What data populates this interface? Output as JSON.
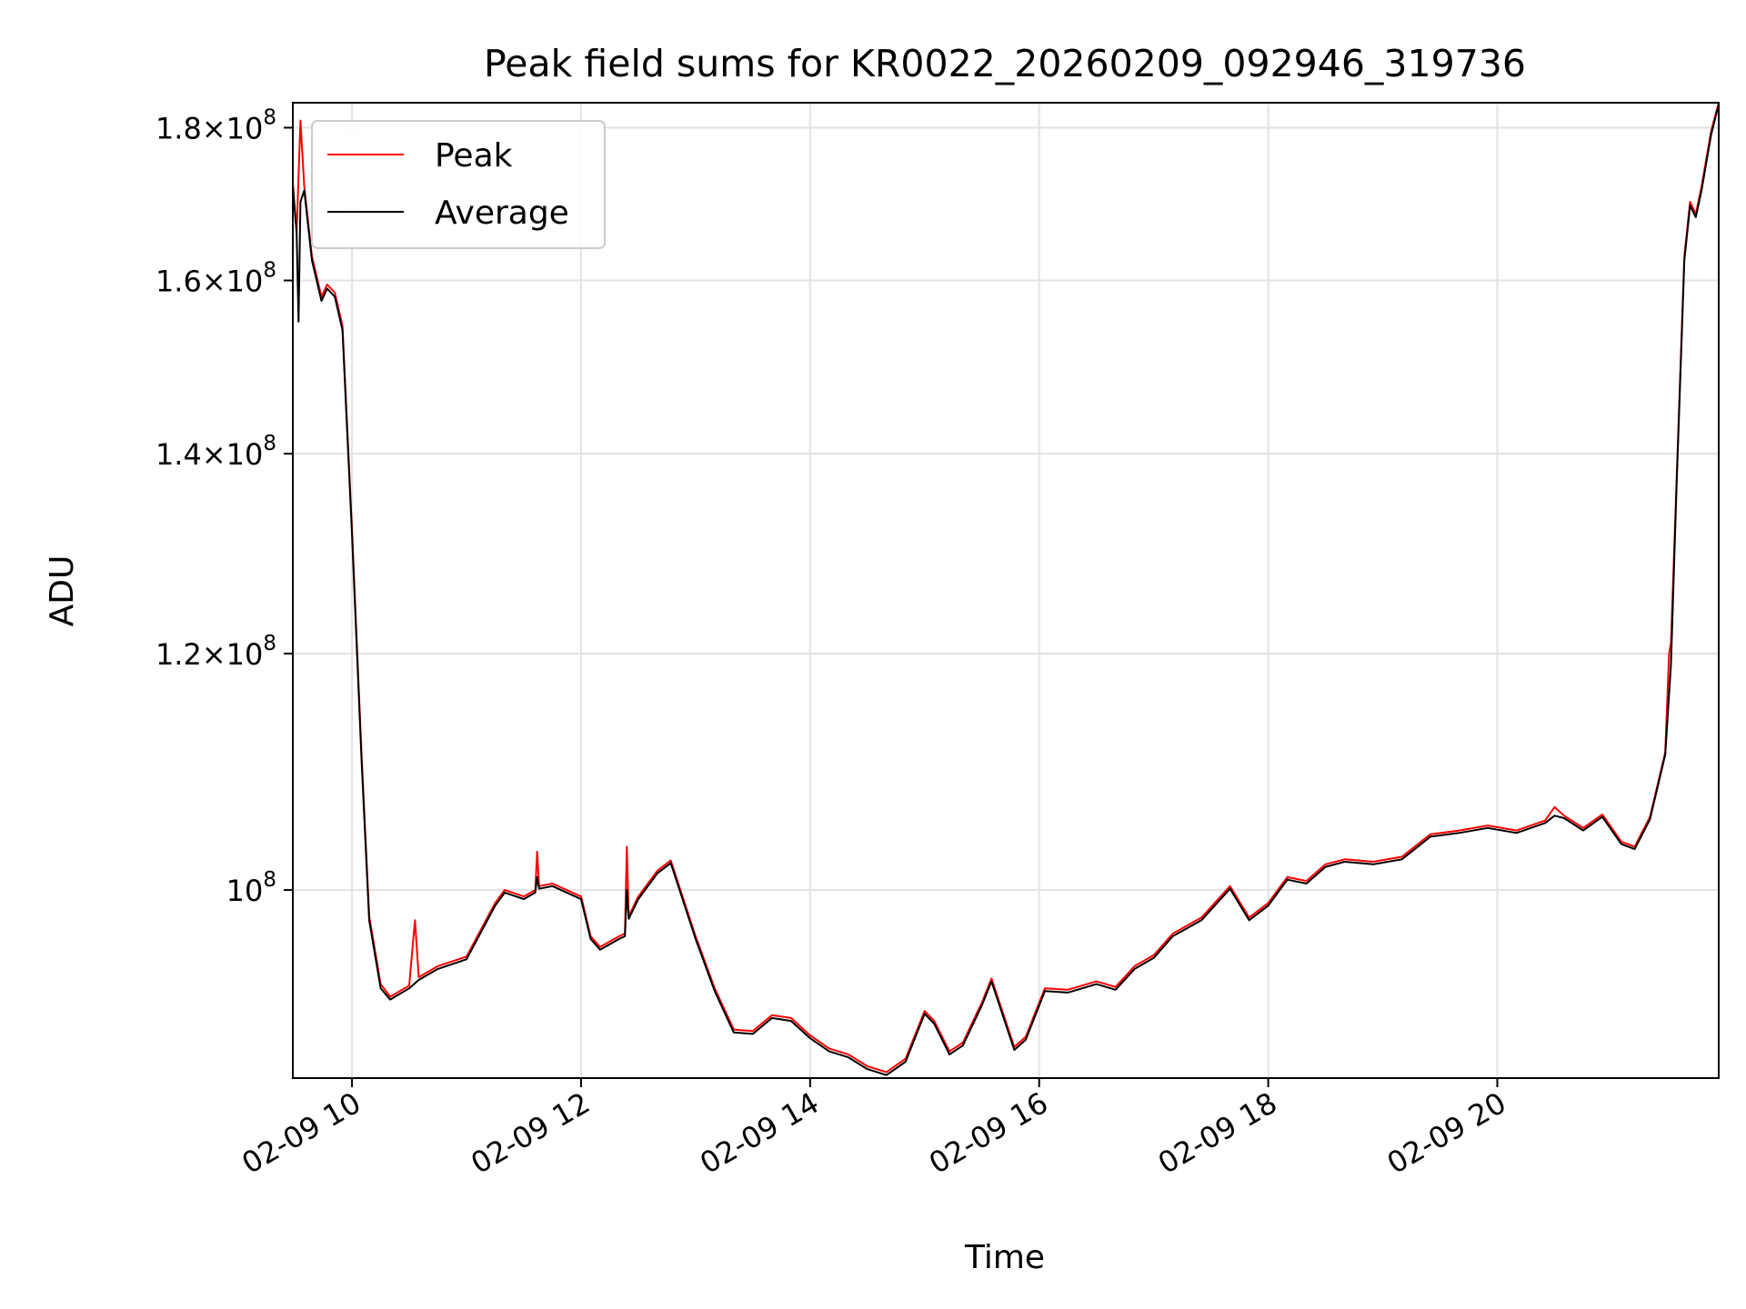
{
  "chart_data": {
    "type": "line",
    "title": "Peak field sums for KR0022_20260209_092946_319736",
    "xlabel": "Time",
    "ylabel": "ADU",
    "x_range": [
      "2026-02-09 09:29",
      "2026-02-09 21:56"
    ],
    "y_scale": "log",
    "y_range": [
      86500000,
      183500000
    ],
    "x_ticks": [
      "02-09 10",
      "02-09 12",
      "02-09 14",
      "02-09 16",
      "02-09 18",
      "02-09 20"
    ],
    "y_ticks": [
      {
        "value": 100000000,
        "mantissa": "",
        "exponent": "8"
      },
      {
        "value": 120000000,
        "mantissa": "1.2",
        "exponent": "8"
      },
      {
        "value": 140000000,
        "mantissa": "1.4",
        "exponent": "8"
      },
      {
        "value": 160000000,
        "mantissa": "1.6",
        "exponent": "8"
      },
      {
        "value": 180000000,
        "mantissa": "1.8",
        "exponent": "8"
      }
    ],
    "grid": true,
    "legend_position": "top-left",
    "series": [
      {
        "name": "Peak",
        "color": "#ff0000",
        "points": [
          [
            "2026-02-09 09:29",
            172500000
          ],
          [
            "2026-02-09 09:31",
            166000000
          ],
          [
            "2026-02-09 09:33",
            181000000
          ],
          [
            "2026-02-09 09:35",
            172000000
          ],
          [
            "2026-02-09 09:39",
            163000000
          ],
          [
            "2026-02-09 09:44",
            158000000
          ],
          [
            "2026-02-09 09:47",
            159500000
          ],
          [
            "2026-02-09 09:51",
            158500000
          ],
          [
            "2026-02-09 09:55",
            154500000
          ],
          [
            "2026-02-09 10:00",
            132000000
          ],
          [
            "2026-02-09 10:05",
            111000000
          ],
          [
            "2026-02-09 10:09",
            98000000
          ],
          [
            "2026-02-09 10:15",
            93000000
          ],
          [
            "2026-02-09 10:20",
            92100000
          ],
          [
            "2026-02-09 10:30",
            92900000
          ],
          [
            "2026-02-09 10:33",
            97700000
          ],
          [
            "2026-02-09 10:35",
            93500000
          ],
          [
            "2026-02-09 10:45",
            94300000
          ],
          [
            "2026-02-09 11:00",
            95000000
          ],
          [
            "2026-02-09 11:15",
            99000000
          ],
          [
            "2026-02-09 11:20",
            100000000
          ],
          [
            "2026-02-09 11:30",
            99500000
          ],
          [
            "2026-02-09 11:36",
            100000000
          ],
          [
            "2026-02-09 11:37",
            103000000
          ],
          [
            "2026-02-09 11:38",
            100300000
          ],
          [
            "2026-02-09 11:45",
            100500000
          ],
          [
            "2026-02-09 12:00",
            99500000
          ],
          [
            "2026-02-09 12:05",
            96500000
          ],
          [
            "2026-02-09 12:10",
            95700000
          ],
          [
            "2026-02-09 12:20",
            96500000
          ],
          [
            "2026-02-09 12:23",
            96700000
          ],
          [
            "2026-02-09 12:24",
            103400000
          ],
          [
            "2026-02-09 12:25",
            98000000
          ],
          [
            "2026-02-09 12:30",
            99500000
          ],
          [
            "2026-02-09 12:40",
            101500000
          ],
          [
            "2026-02-09 12:47",
            102300000
          ],
          [
            "2026-02-09 13:00",
            96500000
          ],
          [
            "2026-02-09 13:10",
            92700000
          ],
          [
            "2026-02-09 13:20",
            89800000
          ],
          [
            "2026-02-09 13:30",
            89700000
          ],
          [
            "2026-02-09 13:40",
            90800000
          ],
          [
            "2026-02-09 13:50",
            90600000
          ],
          [
            "2026-02-09 14:00",
            89400000
          ],
          [
            "2026-02-09 14:10",
            88500000
          ],
          [
            "2026-02-09 14:20",
            88100000
          ],
          [
            "2026-02-09 14:30",
            87300000
          ],
          [
            "2026-02-09 14:40",
            86900000
          ],
          [
            "2026-02-09 14:50",
            87800000
          ],
          [
            "2026-02-09 15:00",
            91100000
          ],
          [
            "2026-02-09 15:05",
            90400000
          ],
          [
            "2026-02-09 15:13",
            88300000
          ],
          [
            "2026-02-09 15:20",
            88900000
          ],
          [
            "2026-02-09 15:30",
            91700000
          ],
          [
            "2026-02-09 15:35",
            93400000
          ],
          [
            "2026-02-09 15:47",
            88600000
          ],
          [
            "2026-02-09 15:53",
            89300000
          ],
          [
            "2026-02-09 16:03",
            92700000
          ],
          [
            "2026-02-09 16:15",
            92600000
          ],
          [
            "2026-02-09 16:30",
            93200000
          ],
          [
            "2026-02-09 16:40",
            92800000
          ],
          [
            "2026-02-09 16:50",
            94300000
          ],
          [
            "2026-02-09 17:00",
            95100000
          ],
          [
            "2026-02-09 17:10",
            96700000
          ],
          [
            "2026-02-09 17:25",
            97900000
          ],
          [
            "2026-02-09 17:40",
            100300000
          ],
          [
            "2026-02-09 17:50",
            97900000
          ],
          [
            "2026-02-09 18:00",
            99000000
          ],
          [
            "2026-02-09 18:10",
            101000000
          ],
          [
            "2026-02-09 18:20",
            100700000
          ],
          [
            "2026-02-09 18:30",
            102000000
          ],
          [
            "2026-02-09 18:40",
            102400000
          ],
          [
            "2026-02-09 18:55",
            102200000
          ],
          [
            "2026-02-09 19:10",
            102600000
          ],
          [
            "2026-02-09 19:25",
            104400000
          ],
          [
            "2026-02-09 19:40",
            104700000
          ],
          [
            "2026-02-09 19:55",
            105100000
          ],
          [
            "2026-02-09 20:10",
            104700000
          ],
          [
            "2026-02-09 20:25",
            105500000
          ],
          [
            "2026-02-09 20:30",
            106600000
          ],
          [
            "2026-02-09 20:35",
            105900000
          ],
          [
            "2026-02-09 20:45",
            104900000
          ],
          [
            "2026-02-09 20:55",
            106000000
          ],
          [
            "2026-02-09 21:05",
            103800000
          ],
          [
            "2026-02-09 21:12",
            103400000
          ],
          [
            "2026-02-09 21:20",
            105800000
          ],
          [
            "2026-02-09 21:28",
            111200000
          ],
          [
            "2026-02-09 21:30",
            120000000
          ],
          [
            "2026-02-09 21:31",
            121000000
          ],
          [
            "2026-02-09 21:34",
            137500000
          ],
          [
            "2026-02-09 21:38",
            163000000
          ],
          [
            "2026-02-09 21:41",
            170000000
          ],
          [
            "2026-02-09 21:44",
            168400000
          ],
          [
            "2026-02-09 21:47",
            172000000
          ],
          [
            "2026-02-09 21:52",
            179500000
          ],
          [
            "2026-02-09 21:56",
            183500000
          ]
        ]
      },
      {
        "name": "Average",
        "color": "#000000",
        "points": [
          [
            "2026-02-09 09:29",
            172000000
          ],
          [
            "2026-02-09 09:31",
            166000000
          ],
          [
            "2026-02-09 09:32",
            155000000
          ],
          [
            "2026-02-09 09:33",
            170000000
          ],
          [
            "2026-02-09 09:35",
            171500000
          ],
          [
            "2026-02-09 09:39",
            162500000
          ],
          [
            "2026-02-09 09:44",
            157500000
          ],
          [
            "2026-02-09 09:47",
            159000000
          ],
          [
            "2026-02-09 09:51",
            158000000
          ],
          [
            "2026-02-09 09:55",
            154000000
          ],
          [
            "2026-02-09 10:00",
            131500000
          ],
          [
            "2026-02-09 10:05",
            110500000
          ],
          [
            "2026-02-09 10:09",
            97700000
          ],
          [
            "2026-02-09 10:15",
            92700000
          ],
          [
            "2026-02-09 10:20",
            91900000
          ],
          [
            "2026-02-09 10:30",
            92700000
          ],
          [
            "2026-02-09 10:35",
            93300000
          ],
          [
            "2026-02-09 10:45",
            94100000
          ],
          [
            "2026-02-09 11:00",
            94800000
          ],
          [
            "2026-02-09 11:15",
            98800000
          ],
          [
            "2026-02-09 11:20",
            99800000
          ],
          [
            "2026-02-09 11:30",
            99300000
          ],
          [
            "2026-02-09 11:36",
            99800000
          ],
          [
            "2026-02-09 11:37",
            101000000
          ],
          [
            "2026-02-09 11:38",
            100100000
          ],
          [
            "2026-02-09 11:45",
            100300000
          ],
          [
            "2026-02-09 12:00",
            99300000
          ],
          [
            "2026-02-09 12:05",
            96300000
          ],
          [
            "2026-02-09 12:10",
            95500000
          ],
          [
            "2026-02-09 12:20",
            96300000
          ],
          [
            "2026-02-09 12:23",
            96500000
          ],
          [
            "2026-02-09 12:24",
            100000000
          ],
          [
            "2026-02-09 12:25",
            97800000
          ],
          [
            "2026-02-09 12:30",
            99300000
          ],
          [
            "2026-02-09 12:40",
            101300000
          ],
          [
            "2026-02-09 12:47",
            102100000
          ],
          [
            "2026-02-09 13:00",
            96300000
          ],
          [
            "2026-02-09 13:10",
            92500000
          ],
          [
            "2026-02-09 13:20",
            89600000
          ],
          [
            "2026-02-09 13:30",
            89500000
          ],
          [
            "2026-02-09 13:40",
            90600000
          ],
          [
            "2026-02-09 13:50",
            90400000
          ],
          [
            "2026-02-09 14:00",
            89200000
          ],
          [
            "2026-02-09 14:10",
            88300000
          ],
          [
            "2026-02-09 14:20",
            87900000
          ],
          [
            "2026-02-09 14:30",
            87100000
          ],
          [
            "2026-02-09 14:40",
            86700000
          ],
          [
            "2026-02-09 14:50",
            87600000
          ],
          [
            "2026-02-09 15:00",
            90900000
          ],
          [
            "2026-02-09 15:05",
            90200000
          ],
          [
            "2026-02-09 15:13",
            88100000
          ],
          [
            "2026-02-09 15:20",
            88700000
          ],
          [
            "2026-02-09 15:30",
            91500000
          ],
          [
            "2026-02-09 15:35",
            93200000
          ],
          [
            "2026-02-09 15:47",
            88400000
          ],
          [
            "2026-02-09 15:53",
            89100000
          ],
          [
            "2026-02-09 16:03",
            92500000
          ],
          [
            "2026-02-09 16:15",
            92400000
          ],
          [
            "2026-02-09 16:30",
            93000000
          ],
          [
            "2026-02-09 16:40",
            92600000
          ],
          [
            "2026-02-09 16:50",
            94100000
          ],
          [
            "2026-02-09 17:00",
            94900000
          ],
          [
            "2026-02-09 17:10",
            96500000
          ],
          [
            "2026-02-09 17:25",
            97700000
          ],
          [
            "2026-02-09 17:40",
            100100000
          ],
          [
            "2026-02-09 17:50",
            97700000
          ],
          [
            "2026-02-09 18:00",
            98800000
          ],
          [
            "2026-02-09 18:10",
            100800000
          ],
          [
            "2026-02-09 18:20",
            100500000
          ],
          [
            "2026-02-09 18:30",
            101800000
          ],
          [
            "2026-02-09 18:40",
            102200000
          ],
          [
            "2026-02-09 18:55",
            102000000
          ],
          [
            "2026-02-09 19:10",
            102400000
          ],
          [
            "2026-02-09 19:25",
            104200000
          ],
          [
            "2026-02-09 19:40",
            104500000
          ],
          [
            "2026-02-09 19:55",
            104900000
          ],
          [
            "2026-02-09 20:10",
            104500000
          ],
          [
            "2026-02-09 20:25",
            105300000
          ],
          [
            "2026-02-09 20:30",
            105900000
          ],
          [
            "2026-02-09 20:35",
            105700000
          ],
          [
            "2026-02-09 20:45",
            104700000
          ],
          [
            "2026-02-09 20:55",
            105800000
          ],
          [
            "2026-02-09 21:05",
            103600000
          ],
          [
            "2026-02-09 21:12",
            103200000
          ],
          [
            "2026-02-09 21:20",
            105600000
          ],
          [
            "2026-02-09 21:28",
            111000000
          ],
          [
            "2026-02-09 21:31",
            119000000
          ],
          [
            "2026-02-09 21:34",
            137000000
          ],
          [
            "2026-02-09 21:38",
            162500000
          ],
          [
            "2026-02-09 21:41",
            169500000
          ],
          [
            "2026-02-09 21:44",
            168000000
          ],
          [
            "2026-02-09 21:47",
            171500000
          ],
          [
            "2026-02-09 21:52",
            179000000
          ],
          [
            "2026-02-09 21:56",
            183300000
          ]
        ]
      }
    ]
  }
}
